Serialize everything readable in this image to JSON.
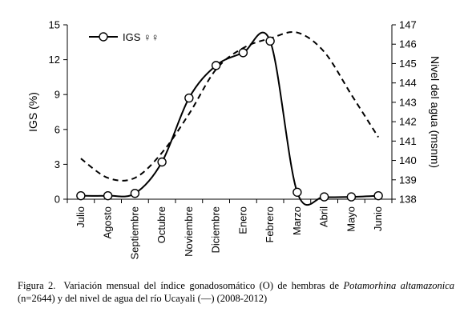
{
  "chart_data": {
    "type": "line",
    "categories": [
      "Julio",
      "Agosto",
      "Septiembre",
      "Octubre",
      "Noviembre",
      "Diciembre",
      "Enero",
      "Febrero",
      "Marzo",
      "Abril",
      "Mayo",
      "Junio"
    ],
    "series": [
      {
        "name": "IGS ♀♀",
        "axis": "left",
        "style": "solid line with open circle markers",
        "values": [
          0.3,
          0.3,
          0.5,
          3.2,
          8.7,
          11.5,
          12.6,
          13.6,
          0.6,
          0.2,
          0.2,
          0.3
        ]
      },
      {
        "name": "",
        "axis": "right",
        "style": "dashed line",
        "values": [
          140.1,
          139.1,
          139.1,
          140.4,
          142.4,
          144.7,
          145.8,
          146.3,
          146.6,
          145.6,
          143.4,
          141.2
        ]
      }
    ],
    "ylabel": "IGS (%)",
    "ylim": [
      0,
      15
    ],
    "yticks": [
      "0",
      "3",
      "6",
      "9",
      "12",
      "15"
    ],
    "y2label": "Nivel del agua (msnm)",
    "y2lim": [
      138,
      147
    ],
    "y2ticks": [
      "138",
      "139",
      "140",
      "141",
      "142",
      "143",
      "144",
      "145",
      "146",
      "147"
    ],
    "xlabel": "",
    "grid": false,
    "legend": {
      "position": "top-left",
      "label": "IGS ♀♀"
    },
    "colors": {
      "lines": "#000000",
      "markers_fill": "#ffffff"
    }
  },
  "caption": {
    "lead": "Figura 2.",
    "text_1": "Variación mensual del índice gonadosomático (O) de hembras de ",
    "species_1": "Potamorhina",
    "species_2": "altamazonica",
    "text_2": " (n=2644) y del nivel de agua del río Ucayali (—) (2008-2012)"
  }
}
